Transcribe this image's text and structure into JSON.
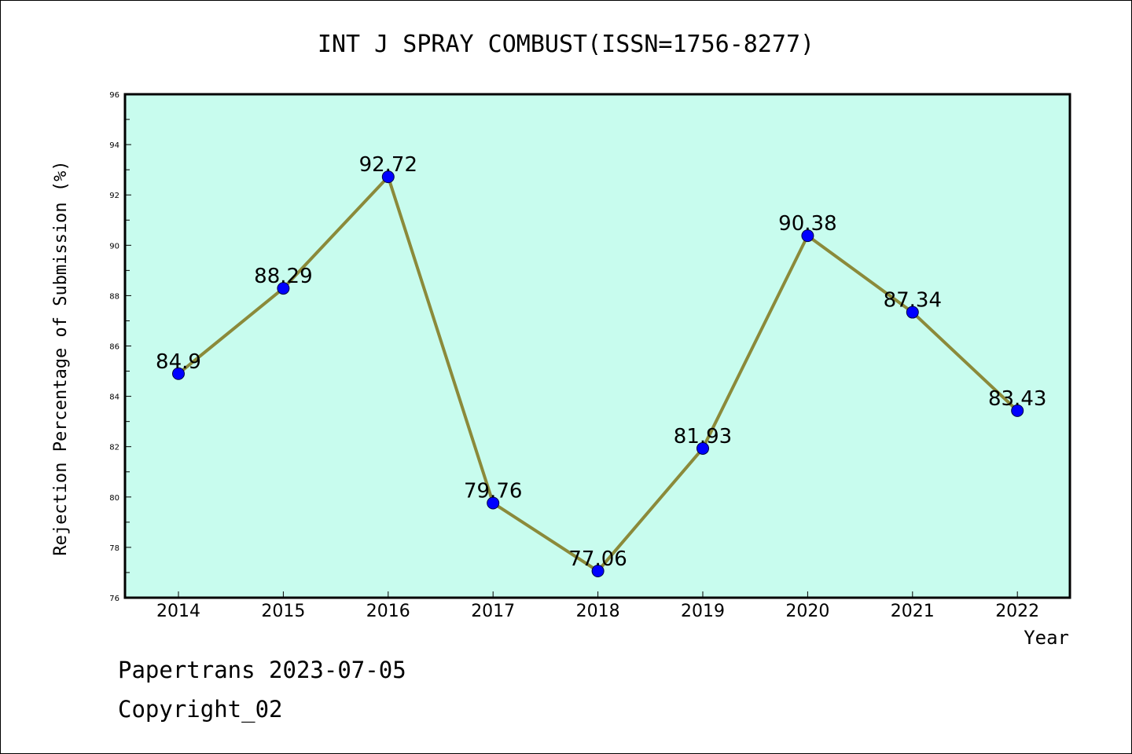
{
  "chart_data": {
    "type": "line",
    "title": "INT J SPRAY COMBUST(ISSN=1756-8277)",
    "xlabel": "Year",
    "ylabel": "Rejection Percentage of Submission (%)",
    "categories": [
      "2014",
      "2015",
      "2016",
      "2017",
      "2018",
      "2019",
      "2020",
      "2021",
      "2022"
    ],
    "values": [
      84.9,
      88.29,
      92.72,
      79.76,
      77.06,
      81.93,
      90.38,
      87.34,
      83.43
    ],
    "data_labels": [
      "84.9",
      "88.29",
      "92.72",
      "79.76",
      "77.06",
      "81.93",
      "90.38",
      "87.34",
      "83.43"
    ],
    "ylim": [
      76,
      96
    ],
    "yticks": [
      76,
      78,
      80,
      82,
      84,
      86,
      88,
      90,
      92,
      94,
      96
    ],
    "grid": false,
    "colors": {
      "plot_background": "#c8fcee",
      "line": "#8b8a3a",
      "marker": "#0000ff"
    }
  },
  "footer": {
    "line1": "Papertrans 2023-07-05",
    "line2": "Copyright_02"
  }
}
